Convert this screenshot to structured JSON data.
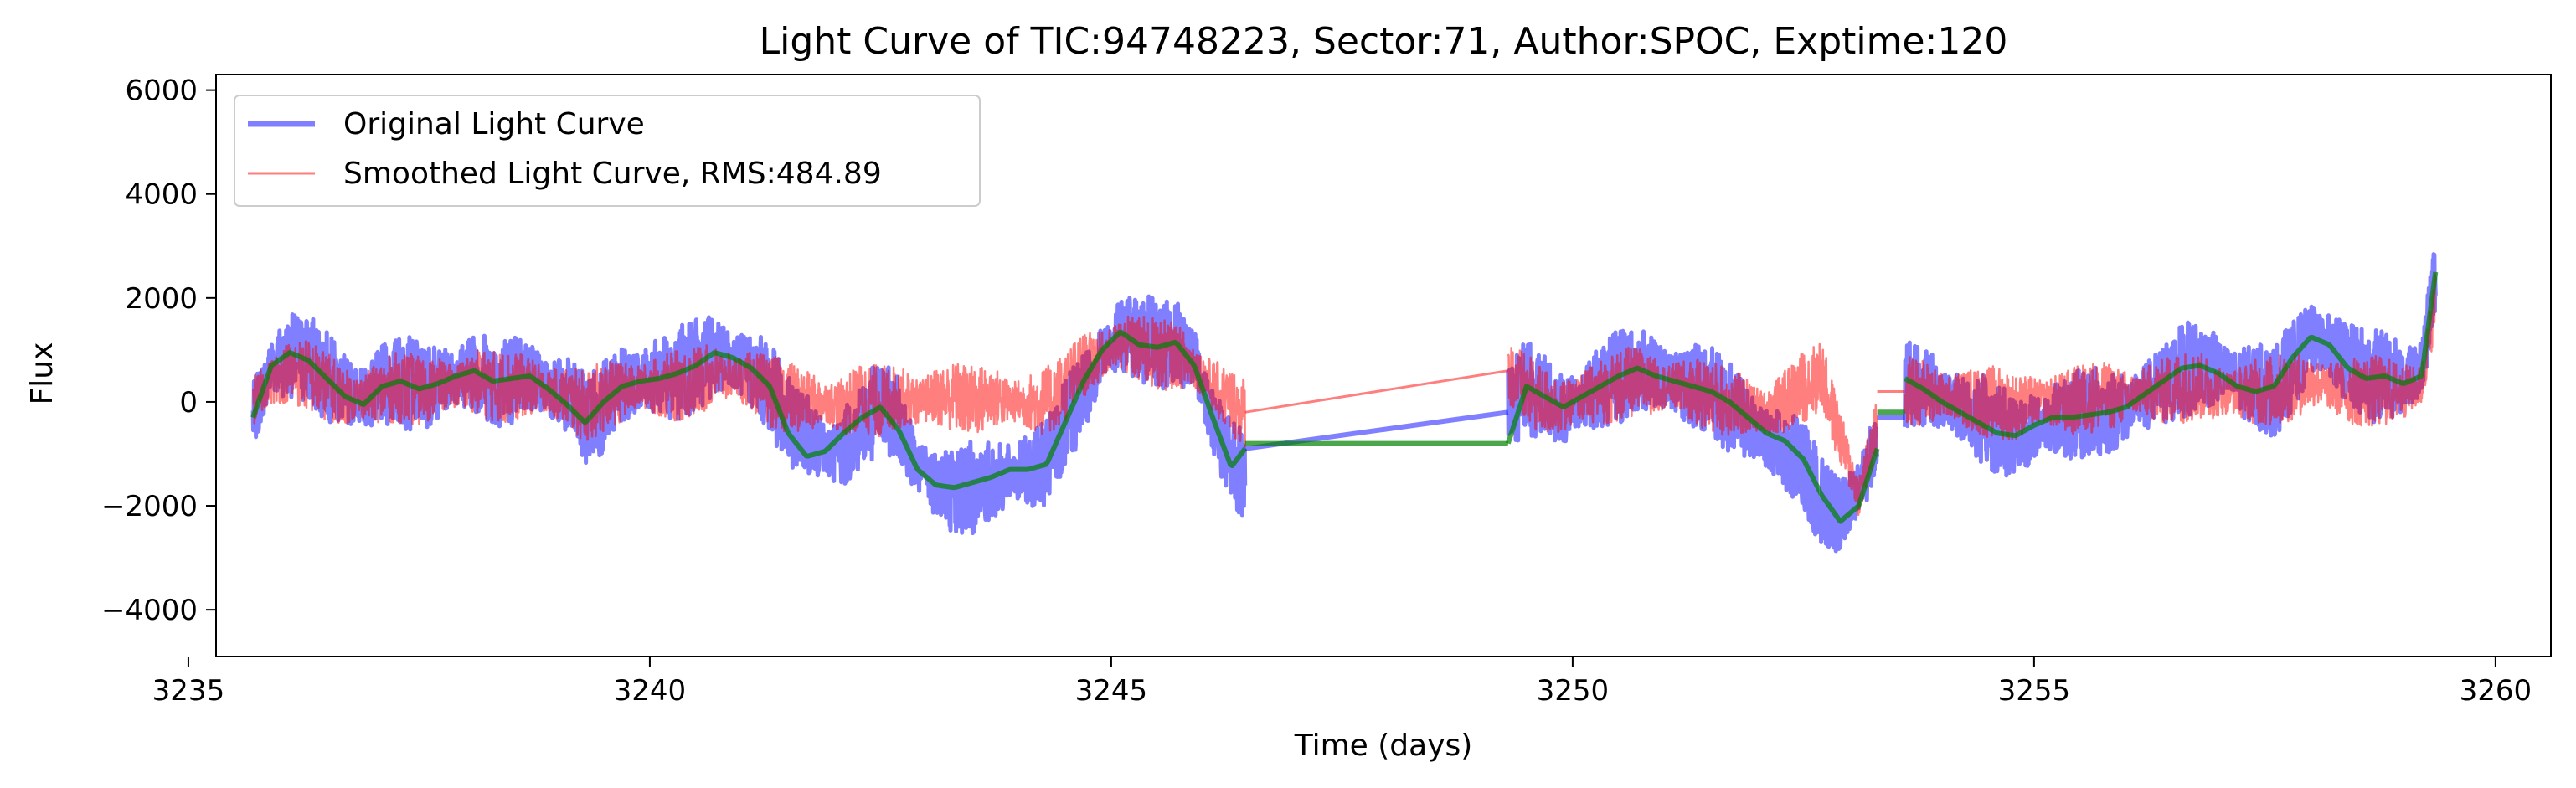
{
  "chart_data": {
    "type": "line",
    "title": "Light Curve of TIC:94748223, Sector:71, Author:SPOC, Exptime:120",
    "xlabel": "Time (days)",
    "ylabel": "Flux",
    "xlim": [
      3235.3,
      3260.6
    ],
    "ylim": [
      -4900,
      6300
    ],
    "xticks": [
      3235,
      3240,
      3245,
      3250,
      3255,
      3260
    ],
    "yticks": [
      -4000,
      -2000,
      0,
      2000,
      4000,
      6000
    ],
    "xtick_labels": [
      "3235",
      "3240",
      "3245",
      "3250",
      "3255",
      "3260"
    ],
    "ytick_labels": [
      "−4000",
      "−2000",
      "0",
      "2000",
      "4000",
      "6000"
    ],
    "grid": false,
    "legend_position": "top-left",
    "series": [
      {
        "name": "Original Light Curve",
        "color": "#0000ff",
        "opacity": 0.5,
        "segments": [
          {
            "x": [
              3235.7,
              3235.9,
              3236.1,
              3236.3,
              3236.5,
              3236.7,
              3236.9,
              3237.1,
              3237.3,
              3237.5,
              3237.7,
              3237.9,
              3238.1,
              3238.3,
              3238.5,
              3238.7,
              3238.9,
              3239.1,
              3239.3,
              3239.5,
              3239.7,
              3239.9,
              3240.1,
              3240.3,
              3240.5,
              3240.7,
              3240.9,
              3241.1,
              3241.3,
              3241.5,
              3241.7,
              3241.9,
              3242.1,
              3242.3,
              3242.5,
              3242.7,
              3242.9,
              3243.1,
              3243.3,
              3243.5,
              3243.7,
              3243.9,
              3244.1,
              3244.3,
              3244.5,
              3244.7,
              3244.9,
              3245.1,
              3245.3,
              3245.5,
              3245.7,
              3245.9,
              3246.1,
              3246.3,
              3246.45
            ],
            "y": [
              -300,
              700,
              900,
              800,
              500,
              200,
              100,
              300,
              400,
              300,
              350,
              500,
              600,
              400,
              450,
              500,
              300,
              100,
              -350,
              -100,
              300,
              400,
              500,
              550,
              700,
              900,
              800,
              600,
              300,
              -400,
              -600,
              -1000,
              -900,
              -400,
              -100,
              -300,
              -1300,
              -1500,
              -1700,
              -1650,
              -1550,
              -1400,
              -1300,
              -1200,
              -500,
              200,
              900,
              1300,
              1200,
              1100,
              1150,
              800,
              -300,
              -1200,
              -1400
            ]
          },
          {
            "x": [
              3246.45,
              3249.3
            ],
            "y": [
              -900,
              -200
            ]
          },
          {
            "x": [
              3249.3,
              3249.5,
              3249.7,
              3249.9,
              3250.1,
              3250.3,
              3250.5,
              3250.7,
              3250.9,
              3251.1,
              3251.3,
              3251.5,
              3251.7,
              3251.9,
              3252.1,
              3252.3,
              3252.5,
              3252.7,
              3252.9,
              3253.1,
              3253.3
            ],
            "y": [
              -200,
              300,
              100,
              -200,
              100,
              300,
              500,
              600,
              500,
              400,
              300,
              200,
              -100,
              -400,
              -700,
              -900,
              -1300,
              -1900,
              -2200,
              -1700,
              -700
            ]
          },
          {
            "x": [
              3253.3,
              3253.6
            ],
            "y": [
              -300,
              -300
            ]
          },
          {
            "x": [
              3253.6,
              3253.8,
              3254.0,
              3254.2,
              3254.4,
              3254.6,
              3254.8,
              3255.0,
              3255.2,
              3255.4,
              3255.6,
              3255.8,
              3256.0,
              3256.2,
              3256.4,
              3256.6,
              3256.8,
              3257.0,
              3257.2,
              3257.4,
              3257.6,
              3257.8,
              3258.0,
              3258.2,
              3258.4,
              3258.6,
              3258.8,
              3259.0,
              3259.2,
              3259.35
            ],
            "y": [
              400,
              300,
              100,
              -100,
              -300,
              -500,
              -600,
              -500,
              -300,
              -300,
              -200,
              -200,
              -100,
              100,
              300,
              600,
              700,
              600,
              400,
              300,
              200,
              700,
              1200,
              1100,
              700,
              500,
              500,
              400,
              600,
              2500
            ]
          }
        ]
      },
      {
        "name": "Smoothed Light Curve, RMS:484.89",
        "color": "#ff0000",
        "opacity": 0.5,
        "segments": [
          {
            "x": [
              3235.7,
              3235.9,
              3236.1,
              3236.3,
              3236.5,
              3236.7,
              3236.9,
              3237.1,
              3237.3,
              3237.5,
              3237.7,
              3237.9,
              3238.1,
              3238.3,
              3238.5,
              3238.7,
              3238.9,
              3239.1,
              3239.3,
              3239.5,
              3239.7,
              3239.9,
              3240.1,
              3240.3,
              3240.5,
              3240.7,
              3240.9,
              3241.1,
              3241.3,
              3241.5,
              3241.7,
              3241.9,
              3242.1,
              3242.3,
              3242.5,
              3242.7,
              3242.9,
              3243.1,
              3243.3,
              3243.5,
              3243.7,
              3243.9,
              3244.1,
              3244.3,
              3244.5,
              3244.7,
              3244.9,
              3245.1,
              3245.3,
              3245.5,
              3245.7,
              3245.9,
              3246.1,
              3246.3,
              3246.45
            ],
            "y": [
              0,
              400,
              600,
              500,
              300,
              100,
              100,
              200,
              300,
              200,
              300,
              300,
              400,
              300,
              300,
              300,
              200,
              100,
              -100,
              100,
              200,
              300,
              300,
              300,
              400,
              500,
              500,
              400,
              200,
              100,
              0,
              0,
              -100,
              100,
              0,
              100,
              0,
              100,
              100,
              0,
              100,
              0,
              0,
              0,
              300,
              700,
              900,
              1100,
              1000,
              900,
              900,
              700,
              300,
              0,
              -200
            ]
          },
          {
            "x": [
              3246.45,
              3249.3
            ],
            "y": [
              -200,
              600
            ]
          },
          {
            "x": [
              3249.3,
              3249.5,
              3249.7,
              3249.9,
              3250.1,
              3250.3,
              3250.5,
              3250.7,
              3250.9,
              3251.1,
              3251.3,
              3251.5,
              3251.7,
              3251.9,
              3252.1,
              3252.3,
              3252.5,
              3252.7,
              3252.9,
              3253.1,
              3253.3
            ],
            "y": [
              600,
              200,
              0,
              -100,
              100,
              200,
              300,
              400,
              300,
              300,
              200,
              100,
              0,
              -100,
              -200,
              0,
              300,
              500,
              -700,
              -1800,
              -500
            ]
          },
          {
            "x": [
              3253.3,
              3253.6
            ],
            "y": [
              200,
              200
            ]
          },
          {
            "x": [
              3253.6,
              3253.8,
              3254.0,
              3254.2,
              3254.4,
              3254.6,
              3254.8,
              3255.0,
              3255.2,
              3255.4,
              3255.6,
              3255.8,
              3256.0,
              3256.2,
              3256.4,
              3256.6,
              3256.8,
              3257.0,
              3257.2,
              3257.4,
              3257.6,
              3257.8,
              3258.0,
              3258.2,
              3258.4,
              3258.6,
              3258.8,
              3259.0,
              3259.2,
              3259.35
            ],
            "y": [
              200,
              200,
              100,
              100,
              0,
              0,
              -100,
              0,
              0,
              0,
              100,
              100,
              100,
              200,
              200,
              300,
              300,
              200,
              200,
              200,
              200,
              300,
              400,
              300,
              200,
              200,
              200,
              200,
              300,
              2000
            ]
          }
        ]
      },
      {
        "color": "#008000",
        "opacity": 0.7,
        "segments": [
          {
            "x": [
              3235.7,
              3235.9,
              3236.1,
              3236.3,
              3236.5,
              3236.7,
              3236.9,
              3237.1,
              3237.3,
              3237.5,
              3237.7,
              3237.9,
              3238.1,
              3238.3,
              3238.5,
              3238.7,
              3238.9,
              3239.1,
              3239.3,
              3239.5,
              3239.7,
              3239.9,
              3240.1,
              3240.3,
              3240.5,
              3240.7,
              3240.9,
              3241.1,
              3241.3,
              3241.5,
              3241.7,
              3241.9,
              3242.1,
              3242.3,
              3242.5,
              3242.7,
              3242.9,
              3243.1,
              3243.3,
              3243.5,
              3243.7,
              3243.9,
              3244.1,
              3244.3,
              3244.5,
              3244.7,
              3244.9,
              3245.1,
              3245.3,
              3245.5,
              3245.7,
              3245.9,
              3246.1,
              3246.3,
              3246.45
            ],
            "y": [
              -300,
              700,
              950,
              800,
              450,
              100,
              -50,
              300,
              400,
              250,
              350,
              500,
              600,
              400,
              450,
              500,
              250,
              -50,
              -400,
              0,
              300,
              400,
              450,
              550,
              700,
              950,
              850,
              650,
              300,
              -600,
              -1050,
              -950,
              -600,
              -300,
              -100,
              -550,
              -1300,
              -1600,
              -1650,
              -1550,
              -1450,
              -1300,
              -1300,
              -1200,
              -400,
              400,
              1000,
              1350,
              1100,
              1050,
              1150,
              700,
              -300,
              -1250,
              -900
            ]
          },
          {
            "x": [
              3246.45,
              3249.3
            ],
            "y": [
              -800,
              -800
            ]
          },
          {
            "x": [
              3249.3,
              3249.5,
              3249.7,
              3249.9,
              3250.1,
              3250.3,
              3250.5,
              3250.7,
              3250.9,
              3251.1,
              3251.3,
              3251.5,
              3251.7,
              3251.9,
              3252.1,
              3252.3,
              3252.5,
              3252.7,
              3252.9,
              3253.1,
              3253.3
            ],
            "y": [
              -800,
              300,
              100,
              -100,
              100,
              300,
              500,
              650,
              500,
              400,
              300,
              200,
              0,
              -300,
              -600,
              -750,
              -1100,
              -1800,
              -2300,
              -2000,
              -900
            ]
          },
          {
            "x": [
              3253.3,
              3253.6
            ],
            "y": [
              -200,
              -200
            ]
          },
          {
            "x": [
              3253.6,
              3253.8,
              3254.0,
              3254.2,
              3254.4,
              3254.6,
              3254.8,
              3255.0,
              3255.2,
              3255.4,
              3255.6,
              3255.8,
              3256.0,
              3256.2,
              3256.4,
              3256.6,
              3256.8,
              3257.0,
              3257.2,
              3257.4,
              3257.6,
              3257.8,
              3258.0,
              3258.2,
              3258.4,
              3258.6,
              3258.8,
              3259.0,
              3259.2,
              3259.35
            ],
            "y": [
              450,
              250,
              0,
              -200,
              -400,
              -600,
              -650,
              -450,
              -300,
              -300,
              -250,
              -200,
              -100,
              150,
              400,
              650,
              700,
              550,
              300,
              200,
              300,
              850,
              1250,
              1100,
              650,
              450,
              500,
              350,
              500,
              2500
            ]
          }
        ]
      }
    ]
  }
}
